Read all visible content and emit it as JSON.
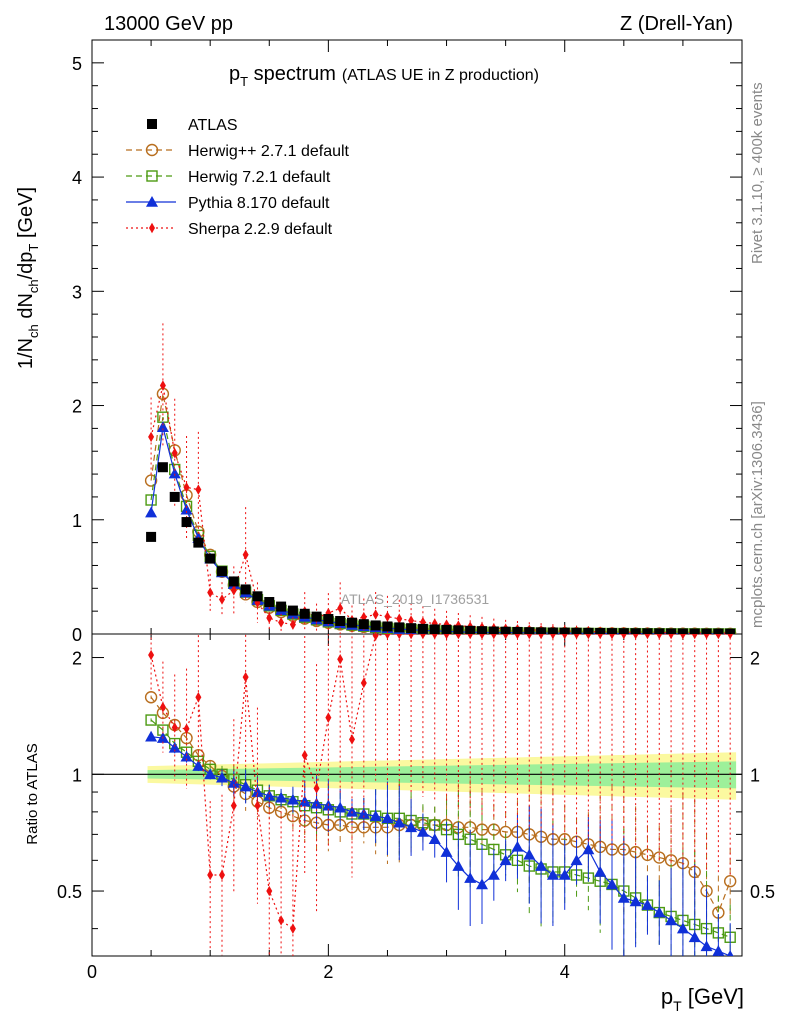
{
  "header": {
    "left": "13000 GeV pp",
    "right": "Z (Drell-Yan)"
  },
  "side_labels": {
    "rivet": "Rivet 3.1.10, ≥ 400k events",
    "mcplots": "mcplots.cern.ch [arXiv:1306.3436]"
  },
  "watermark": "ATLAS_2019_I1736531",
  "chart_data": {
    "type": "scatter",
    "title": {
      "main": "p",
      "main_sub": "T",
      "main_rest": " spectrum",
      "note": "(ATLAS UE in Z production)"
    },
    "xlabel": {
      "main": "p",
      "sub": "T",
      "rest": " [GeV]"
    },
    "ylabel": {
      "a": "1/N",
      "a_sub": "ch",
      "b": " dN",
      "b_sub": "ch",
      "c": "/dp",
      "c_sub": "T",
      "d": " [GeV]"
    },
    "ratio_ylabel": "Ratio to ATLAS",
    "xlim": [
      0,
      5.5
    ],
    "ylim": [
      0,
      5.2
    ],
    "ratio_ylim": [
      0.34,
      2.3
    ],
    "x_ticks": [
      "0",
      "2",
      "4"
    ],
    "y_ticks": [
      "0",
      "1",
      "2",
      "3",
      "4",
      "5"
    ],
    "ratio_ticks": [
      "0.5",
      "1",
      "2"
    ],
    "x": [
      0.5,
      0.6,
      0.7,
      0.8,
      0.9,
      1.0,
      1.1,
      1.2,
      1.3,
      1.4,
      1.5,
      1.6,
      1.7,
      1.8,
      1.9,
      2.0,
      2.1,
      2.2,
      2.3,
      2.4,
      2.5,
      2.6,
      2.7,
      2.8,
      2.9,
      3.0,
      3.1,
      3.2,
      3.3,
      3.4,
      3.5,
      3.6,
      3.7,
      3.8,
      3.9,
      4.0,
      4.1,
      4.2,
      4.3,
      4.4,
      4.5,
      4.6,
      4.7,
      4.8,
      4.9,
      5.0,
      5.1,
      5.2,
      5.3,
      5.4
    ],
    "series": [
      {
        "name": "ATLAS",
        "color": "#000000",
        "marker": "square-filled",
        "values": [
          0.85,
          1.46,
          1.2,
          0.98,
          0.8,
          0.66,
          0.55,
          0.46,
          0.39,
          0.33,
          0.28,
          0.24,
          0.205,
          0.177,
          0.152,
          0.131,
          0.114,
          0.099,
          0.086,
          0.075,
          0.066,
          0.058,
          0.051,
          0.045,
          0.04,
          0.036,
          0.032,
          0.028,
          0.025,
          0.022,
          0.02,
          0.018,
          0.016,
          0.0145,
          0.013,
          0.0118,
          0.0106,
          0.0096,
          0.0087,
          0.0079,
          0.0072,
          0.0065,
          0.0059,
          0.0054,
          0.0049,
          0.0045,
          0.0041,
          0.0037,
          0.0034,
          0.0031
        ]
      },
      {
        "name": "Herwig++ 2.7.1 default",
        "color": "#b86e1e",
        "marker": "circle-open",
        "dash": "6,4",
        "ratio": [
          1.58,
          1.44,
          1.34,
          1.24,
          1.12,
          1.05,
          0.99,
          0.93,
          0.89,
          0.85,
          0.82,
          0.8,
          0.78,
          0.76,
          0.75,
          0.74,
          0.74,
          0.73,
          0.73,
          0.73,
          0.73,
          0.74,
          0.74,
          0.74,
          0.74,
          0.74,
          0.73,
          0.73,
          0.72,
          0.72,
          0.71,
          0.71,
          0.7,
          0.69,
          0.68,
          0.68,
          0.67,
          0.66,
          0.65,
          0.64,
          0.64,
          0.63,
          0.62,
          0.61,
          0.6,
          0.59,
          0.56,
          0.5,
          0.44,
          0.53
        ]
      },
      {
        "name": "Herwig 7.2.1 default",
        "color": "#4c9a12",
        "marker": "square-open",
        "dash": "6,4",
        "ratio": [
          1.38,
          1.3,
          1.2,
          1.14,
          1.08,
          1.03,
          1.0,
          0.97,
          0.94,
          0.91,
          0.88,
          0.86,
          0.85,
          0.83,
          0.82,
          0.81,
          0.8,
          0.79,
          0.79,
          0.78,
          0.77,
          0.77,
          0.76,
          0.75,
          0.74,
          0.72,
          0.7,
          0.68,
          0.66,
          0.64,
          0.62,
          0.6,
          0.58,
          0.57,
          0.56,
          0.56,
          0.55,
          0.54,
          0.53,
          0.52,
          0.5,
          0.48,
          0.46,
          0.44,
          0.43,
          0.42,
          0.41,
          0.4,
          0.39,
          0.38
        ]
      },
      {
        "name": "Pythia 8.170 default",
        "color": "#1030d8",
        "marker": "triangle-filled",
        "dash": "",
        "ratio": [
          1.25,
          1.24,
          1.17,
          1.11,
          1.05,
          1.0,
          0.98,
          0.95,
          0.93,
          0.9,
          0.88,
          0.87,
          0.86,
          0.85,
          0.84,
          0.83,
          0.82,
          0.8,
          0.79,
          0.78,
          0.77,
          0.75,
          0.73,
          0.71,
          0.68,
          0.63,
          0.58,
          0.54,
          0.52,
          0.55,
          0.6,
          0.65,
          0.62,
          0.58,
          0.55,
          0.55,
          0.6,
          0.64,
          0.56,
          0.52,
          0.48,
          0.47,
          0.46,
          0.44,
          0.42,
          0.4,
          0.38,
          0.36,
          0.35,
          0.34
        ]
      },
      {
        "name": "Sherpa 2.2.9 default",
        "color": "#ee1010",
        "marker": "diamond-filled",
        "dash": "2,3",
        "ratio": [
          2.03,
          1.49,
          1.32,
          1.31,
          1.58,
          0.55,
          0.55,
          0.83,
          1.78,
          0.83,
          0.5,
          0.42,
          0.4,
          1.12,
          0.92,
          1.4,
          1.98,
          1.23,
          1.72,
          2.28,
          2.3,
          2.3,
          2.3,
          2.3,
          2.3,
          2.3,
          2.3,
          2.3,
          2.3,
          2.3,
          2.3,
          2.3,
          2.3,
          2.3,
          2.3,
          2.3,
          2.3,
          2.3,
          2.3,
          2.3,
          2.3,
          2.3,
          2.3,
          2.3,
          2.3,
          2.3,
          2.3,
          2.3,
          2.3,
          2.3
        ]
      }
    ]
  }
}
